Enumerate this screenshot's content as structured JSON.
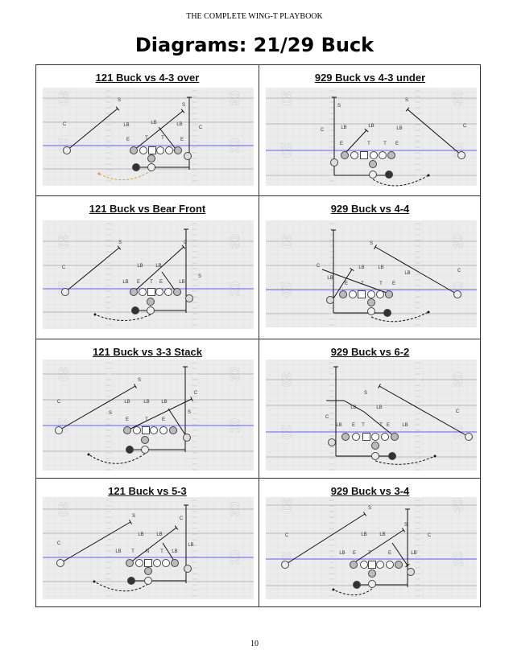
{
  "header": "THE COMPLETE WING-T PLAYBOOK",
  "title": "Diagrams: 21/29 Buck",
  "page_number": "10",
  "field_numbers": [
    "30",
    "20"
  ],
  "colors": {
    "los": "#7b7bff",
    "route": "#111111",
    "motion_highlight": "#e0a030",
    "field": "#ececec"
  },
  "diagrams": [
    {
      "title": "121 Buck vs 4-3 over",
      "defense": [
        "S",
        "S",
        "C",
        "LB",
        "LB",
        "LB",
        "C",
        "E",
        "T",
        "T",
        "E"
      ]
    },
    {
      "title": "929 Buck vs  4-3 under",
      "defense": [
        "S",
        "S",
        "C",
        "LB",
        "LB",
        "LB",
        "C",
        "E",
        "T",
        "T",
        "E"
      ]
    },
    {
      "title": "121 Buck vs Bear Front",
      "defense": [
        "S",
        "C",
        "C",
        "LB",
        "LB",
        "LB",
        "E",
        "T",
        "E",
        "LB",
        "S"
      ]
    },
    {
      "title": "929 Buck vs 4-4",
      "defense": [
        "S",
        "C",
        "C",
        "LB",
        "LB",
        "LB",
        "LB",
        "E",
        "T",
        "T",
        "E"
      ]
    },
    {
      "title": "121 Buck vs 3-3 Stack",
      "defense": [
        "S",
        "C",
        "C",
        "LB",
        "LB",
        "LB",
        "S",
        "S",
        "E",
        "T",
        "E"
      ]
    },
    {
      "title": "929 Buck vs 6-2",
      "defense": [
        "S",
        "C",
        "C",
        "LB",
        "LB",
        "LB",
        "E",
        "T",
        "T",
        "E",
        "LB"
      ]
    },
    {
      "title": "121 Buck vs 5-3",
      "defense": [
        "S",
        "C",
        "C",
        "LB",
        "LB",
        "LB",
        "LB",
        "T",
        "N",
        "T",
        "LB"
      ]
    },
    {
      "title": "929 Buck vs 3-4",
      "defense": [
        "S",
        "S",
        "C",
        "LB",
        "LB",
        "C",
        "LB",
        "E",
        "T",
        "E",
        "LB"
      ]
    }
  ]
}
